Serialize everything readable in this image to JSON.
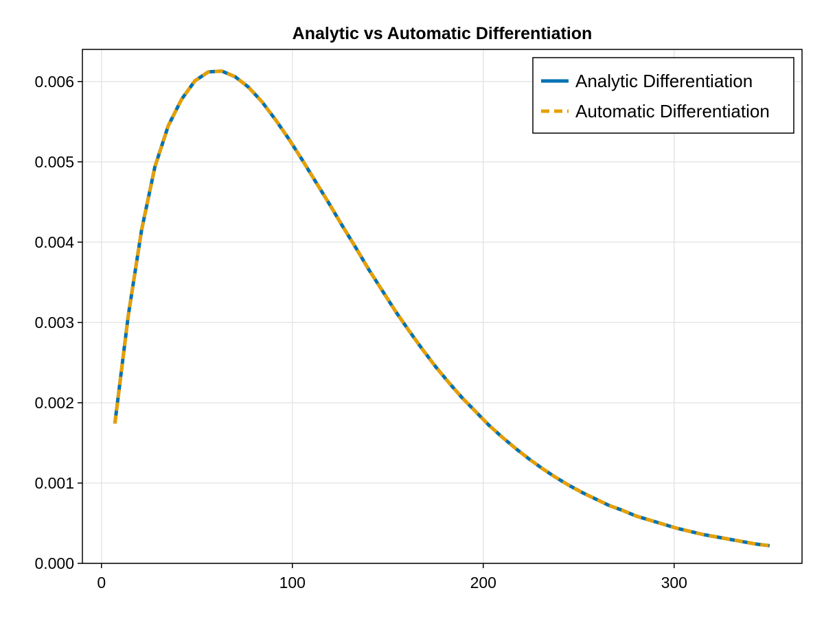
{
  "chart_data": {
    "type": "line",
    "title": "Analytic vs Automatic Differentiation",
    "xlabel": "",
    "ylabel": "",
    "xlim": [
      -10,
      367
    ],
    "ylim": [
      0,
      0.0064
    ],
    "x_ticks": [
      0,
      100,
      200,
      300
    ],
    "x_tick_labels": [
      "0",
      "100",
      "200",
      "300"
    ],
    "y_ticks": [
      0,
      0.001,
      0.002,
      0.003,
      0.004,
      0.005,
      0.006
    ],
    "y_tick_labels": [
      "0.000",
      "0.001",
      "0.002",
      "0.003",
      "0.004",
      "0.005",
      "0.006"
    ],
    "grid": true,
    "legend_position": "top-right",
    "colors": {
      "analytic": "#0072b2",
      "automatic": "#e69f00",
      "axis": "#000000",
      "grid": "#e5e5e5"
    },
    "x": [
      7,
      14,
      21,
      28,
      35,
      42,
      49,
      56,
      63,
      70,
      77,
      84,
      91,
      98,
      105,
      112,
      119,
      126,
      133,
      140,
      147,
      154,
      161,
      168,
      175,
      182,
      189,
      196,
      203,
      210,
      217,
      224,
      231,
      238,
      245,
      252,
      259,
      266,
      273,
      280,
      287,
      294,
      301,
      308,
      315,
      322,
      329,
      336,
      343,
      350
    ],
    "series": [
      {
        "name": "Analytic Differentiation",
        "style": "solid",
        "values": [
          0.00174,
          0.00308,
          0.00415,
          0.00494,
          0.00545,
          0.00578,
          0.00601,
          0.00612,
          0.00613,
          0.00606,
          0.00593,
          0.00575,
          0.00553,
          0.00529,
          0.00503,
          0.00476,
          0.00449,
          0.00421,
          0.00394,
          0.00366,
          0.0034,
          0.00314,
          0.0029,
          0.00267,
          0.00245,
          0.00225,
          0.00206,
          0.00189,
          0.00172,
          0.00157,
          0.00143,
          0.0013,
          0.00118,
          0.00107,
          0.00097,
          0.00088,
          0.0008,
          0.00072,
          0.00066,
          0.00059,
          0.00054,
          0.00049,
          0.00044,
          0.0004,
          0.00036,
          0.00033,
          0.0003,
          0.00027,
          0.00024,
          0.00022
        ]
      },
      {
        "name": "Automatic Differentiation",
        "style": "dashed",
        "values": [
          0.00174,
          0.00308,
          0.00415,
          0.00494,
          0.00545,
          0.00578,
          0.00601,
          0.00612,
          0.00613,
          0.00606,
          0.00593,
          0.00575,
          0.00553,
          0.00529,
          0.00503,
          0.00476,
          0.00449,
          0.00421,
          0.00394,
          0.00366,
          0.0034,
          0.00314,
          0.0029,
          0.00267,
          0.00245,
          0.00225,
          0.00206,
          0.00189,
          0.00172,
          0.00157,
          0.00143,
          0.0013,
          0.00118,
          0.00107,
          0.00097,
          0.00088,
          0.0008,
          0.00072,
          0.00066,
          0.00059,
          0.00054,
          0.00049,
          0.00044,
          0.0004,
          0.00036,
          0.00033,
          0.0003,
          0.00027,
          0.00024,
          0.00022
        ]
      }
    ]
  }
}
